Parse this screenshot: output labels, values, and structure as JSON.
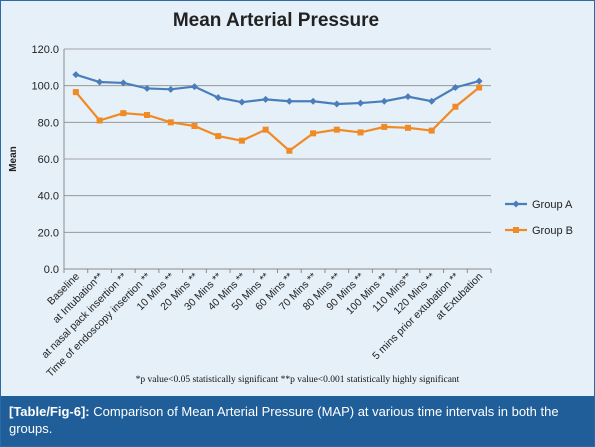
{
  "chart_data": {
    "type": "line",
    "title": "Mean Arterial Pressure",
    "ylabel": "Mean",
    "xlabel": "",
    "ylim": [
      0,
      120
    ],
    "yticks": [
      "0.0",
      "20.0",
      "40.0",
      "60.0",
      "80.0",
      "100.0",
      "120.0"
    ],
    "grid": true,
    "legend": "right",
    "categories": [
      "Baseline",
      "at Intubation**",
      "at nasal pack insertion **",
      "Time of endoscopy insertion **",
      "10 Mins **",
      "20 Mins **",
      "30 Mins **",
      "40 Mins **",
      "50 Mins **",
      "60 Mins **",
      "70 Mins **",
      "80 Mins **",
      "90 Mins **",
      "100 Mins **",
      "110 Mins**",
      "120 Mins **",
      "5 mins prior extubation **",
      "at Extubation"
    ],
    "series": [
      {
        "name": "Group A",
        "color": "#4a7ebb",
        "marker": "diamond",
        "values": [
          106,
          102,
          101.5,
          98.5,
          98,
          99.5,
          93.5,
          91,
          92.5,
          91.5,
          91.5,
          90,
          90.5,
          91.5,
          94,
          91.5,
          99,
          102.5
        ]
      },
      {
        "name": "Group B",
        "color": "#f08a24",
        "marker": "square",
        "values": [
          96.5,
          81,
          85,
          84,
          80,
          78,
          72.5,
          70,
          76,
          64.5,
          74,
          76,
          74.5,
          77.5,
          77,
          75.5,
          88.5,
          99
        ]
      }
    ]
  },
  "footnote": "*p value<0.05 statistically significant **p value<0.001 statistically highly significant",
  "caption": {
    "label": "[Table/Fig-6]:",
    "text": "Comparison of Mean Arterial Pressure (MAP) at various time intervals in both the groups."
  }
}
